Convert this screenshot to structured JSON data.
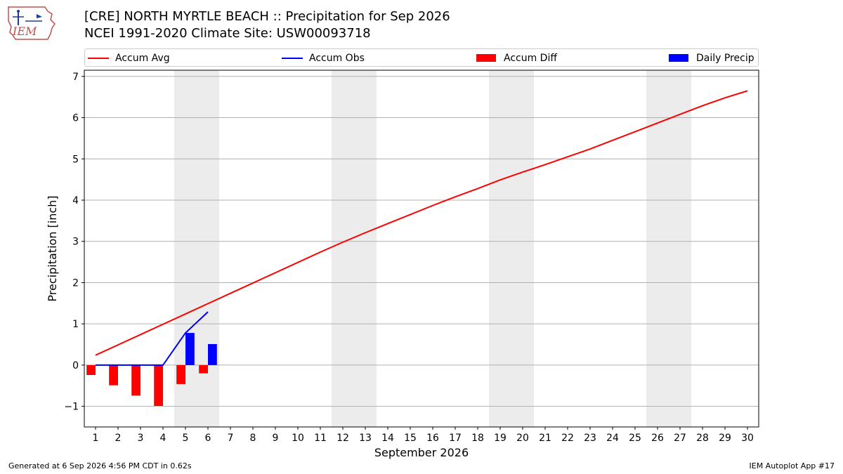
{
  "header": {
    "logo_text": "IEM",
    "title_line1": "[CRE] NORTH MYRTLE BEACH :: Precipitation for Sep 2026",
    "title_line2": "NCEI 1991-2020 Climate Site: USW00093718"
  },
  "legend": {
    "items": [
      {
        "label": "Accum Avg",
        "kind": "line",
        "color": "#ff0000"
      },
      {
        "label": "Accum Obs",
        "kind": "line",
        "color": "#0000ff"
      },
      {
        "label": "Accum Diff",
        "kind": "patch",
        "color": "#ff0000"
      },
      {
        "label": "Daily Precip",
        "kind": "patch",
        "color": "#0000ff"
      }
    ]
  },
  "footer": {
    "left": "Generated at 6 Sep 2026 4:56 PM CDT in 0.62s",
    "right": "IEM Autoplot App #17"
  },
  "chart_data": {
    "type": "bar",
    "xlabel": "September 2026",
    "ylabel": "Precipitation [inch]",
    "xlim": [
      0.5,
      30.5
    ],
    "ylim": [
      -1.5,
      7.15
    ],
    "x_ticks": [
      1,
      2,
      3,
      4,
      5,
      6,
      7,
      8,
      9,
      10,
      11,
      12,
      13,
      14,
      15,
      16,
      17,
      18,
      19,
      20,
      21,
      22,
      23,
      24,
      25,
      26,
      27,
      28,
      29,
      30
    ],
    "y_ticks": [
      -1,
      0,
      1,
      2,
      3,
      4,
      5,
      6,
      7
    ],
    "y_tick_labels": [
      "−1",
      "0",
      "1",
      "2",
      "3",
      "4",
      "5",
      "6",
      "7"
    ],
    "grid": "horizontal",
    "weekend_shading": [
      [
        4.5,
        6.5
      ],
      [
        11.5,
        13.5
      ],
      [
        18.5,
        20.5
      ],
      [
        25.5,
        27.5
      ]
    ],
    "colors": {
      "avg": "#ff0000",
      "obs": "#0000ff",
      "diff": "#ff0000",
      "daily": "#0000ff",
      "shade": "#ececec",
      "grid": "#b0b0b0"
    },
    "accum_avg": {
      "x": [
        1,
        2,
        3,
        4,
        5,
        6,
        7,
        8,
        9,
        10,
        11,
        12,
        13,
        14,
        15,
        16,
        17,
        18,
        19,
        20,
        21,
        22,
        23,
        24,
        25,
        26,
        27,
        28,
        29,
        30
      ],
      "y": [
        0.24,
        0.49,
        0.74,
        0.99,
        1.24,
        1.49,
        1.74,
        1.99,
        2.24,
        2.49,
        2.74,
        2.98,
        3.21,
        3.43,
        3.65,
        3.87,
        4.08,
        4.28,
        4.49,
        4.68,
        4.86,
        5.05,
        5.24,
        5.45,
        5.66,
        5.87,
        6.08,
        6.29,
        6.48,
        6.65
      ]
    },
    "accum_obs": {
      "x": [
        1,
        2,
        3,
        4,
        5,
        6
      ],
      "y": [
        0,
        0,
        0,
        0,
        0.78,
        1.29
      ]
    },
    "accum_diff": {
      "x": [
        1,
        2,
        3,
        4,
        5,
        6
      ],
      "values": [
        -0.24,
        -0.49,
        -0.74,
        -0.99,
        -0.46,
        -0.2
      ]
    },
    "daily_precip": {
      "x": [
        1,
        2,
        3,
        4,
        5,
        6
      ],
      "values": [
        0,
        0,
        0,
        0,
        0.78,
        0.51
      ]
    }
  }
}
